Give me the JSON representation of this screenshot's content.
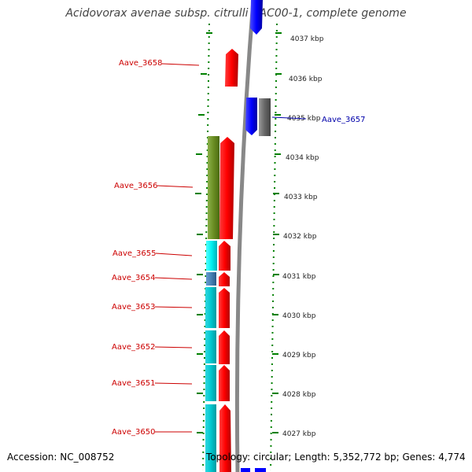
{
  "title": "Acidovorax avenae subsp. citrulli AAC00-1, complete genome",
  "accession_text": "Accession: NC_008752",
  "summary_text": "Topology: circular; Length: 5,352,772 bp; Genes: 4,774",
  "scale_labels": [
    "4037 kbp",
    "4036 kbp",
    "4035 kbp",
    "4034 kbp",
    "4033 kbp",
    "4032 kbp",
    "4031 kbp",
    "4030 kbp",
    "4029 kbp",
    "4028 kbp",
    "4027 kbp"
  ],
  "genes": [
    {
      "name": "Aave_3658",
      "color": "#cc0000"
    },
    {
      "name": "Aave_3657",
      "color": "#0000aa"
    },
    {
      "name": "Aave_3656",
      "color": "#cc0000"
    },
    {
      "name": "Aave_3655",
      "color": "#cc0000"
    },
    {
      "name": "Aave_3654",
      "color": "#cc0000"
    },
    {
      "name": "Aave_3653",
      "color": "#cc0000"
    },
    {
      "name": "Aave_3652",
      "color": "#cc0000"
    },
    {
      "name": "Aave_3651",
      "color": "#cc0000"
    },
    {
      "name": "Aave_3650",
      "color": "#cc0000"
    }
  ],
  "colors": {
    "forward_gene": "#ff0000",
    "reverse_gene": "#0000ff",
    "gray_feature": "#666666",
    "olive_feature": "#6b8e23",
    "cyan_feature": "#00cccc",
    "steel_feature": "#4682b4",
    "backbone": "#888888",
    "tick": "#008000"
  }
}
